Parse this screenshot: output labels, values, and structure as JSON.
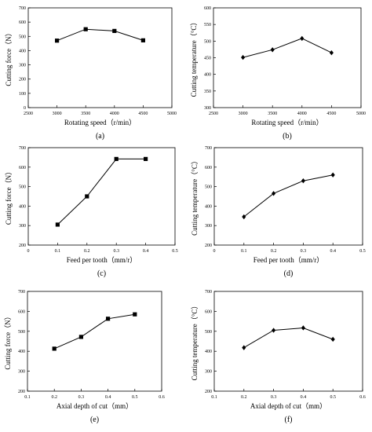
{
  "chart_data": [
    {
      "type": "line",
      "panel_label": "(a)",
      "marker": "square",
      "xlabel": "Rotating speed（r/min）",
      "ylabel": "Cutting force（N）",
      "xlim": [
        2500,
        5000
      ],
      "ylim": [
        0,
        700
      ],
      "xticks": [
        2500,
        3000,
        3500,
        4000,
        4500,
        5000
      ],
      "yticks": [
        0,
        100,
        200,
        300,
        400,
        500,
        600,
        700
      ],
      "x": [
        3000,
        3500,
        4000,
        4500
      ],
      "y": [
        470,
        550,
        538,
        472
      ]
    },
    {
      "type": "line",
      "panel_label": "(b)",
      "marker": "diamond",
      "xlabel": "Rotating speed（r/min）",
      "ylabel": "Cutting temperature（°C）",
      "xlim": [
        2500,
        5000
      ],
      "ylim": [
        300,
        600
      ],
      "xticks": [
        2500,
        3000,
        3500,
        4000,
        4500,
        5000
      ],
      "yticks": [
        300,
        350,
        400,
        450,
        500,
        550,
        600
      ],
      "x": [
        3000,
        3500,
        4000,
        4500
      ],
      "y": [
        451,
        474,
        508,
        465
      ]
    },
    {
      "type": "line",
      "panel_label": "(c)",
      "marker": "square",
      "xlabel": "Feed per tooth（mm/r）",
      "ylabel": "Cutting force（N）",
      "xlim": [
        0,
        0.5
      ],
      "ylim": [
        200,
        700
      ],
      "xticks": [
        0,
        0.1,
        0.2,
        0.3,
        0.4,
        0.5
      ],
      "yticks": [
        200,
        300,
        400,
        500,
        600,
        700
      ],
      "x": [
        0.1,
        0.2,
        0.3,
        0.4
      ],
      "y": [
        305,
        450,
        642,
        642
      ]
    },
    {
      "type": "line",
      "panel_label": "(d)",
      "marker": "diamond",
      "xlabel": "Feed per tooth（mm/r）",
      "ylabel": "Cutting temperature（°C）",
      "xlim": [
        0,
        0.5
      ],
      "ylim": [
        200,
        700
      ],
      "xticks": [
        0,
        0.1,
        0.2,
        0.3,
        0.4,
        0.5
      ],
      "yticks": [
        200,
        300,
        400,
        500,
        600,
        700
      ],
      "x": [
        0.1,
        0.2,
        0.3,
        0.4
      ],
      "y": [
        345,
        465,
        530,
        560
      ]
    },
    {
      "type": "line",
      "panel_label": "(e)",
      "marker": "square",
      "xlabel": "Axial depth of cut（mm）",
      "ylabel": "Cutting force（N）",
      "xlim": [
        0.1,
        0.6
      ],
      "ylim": [
        200,
        700
      ],
      "xticks": [
        0.1,
        0.2,
        0.3,
        0.4,
        0.5,
        0.6
      ],
      "yticks": [
        200,
        300,
        400,
        500,
        600,
        700
      ],
      "x": [
        0.2,
        0.3,
        0.4,
        0.5
      ],
      "y": [
        413,
        472,
        563,
        585
      ]
    },
    {
      "type": "line",
      "panel_label": "(f)",
      "marker": "diamond",
      "xlabel": "Axial depth of cut（mm）",
      "ylabel": "Cutting temperature（°C）",
      "xlim": [
        0.1,
        0.6
      ],
      "ylim": [
        200,
        700
      ],
      "xticks": [
        0.1,
        0.2,
        0.3,
        0.4,
        0.5,
        0.6
      ],
      "yticks": [
        200,
        300,
        400,
        500,
        600,
        700
      ],
      "x": [
        0.2,
        0.3,
        0.4,
        0.5
      ],
      "y": [
        418,
        505,
        517,
        460
      ]
    }
  ]
}
